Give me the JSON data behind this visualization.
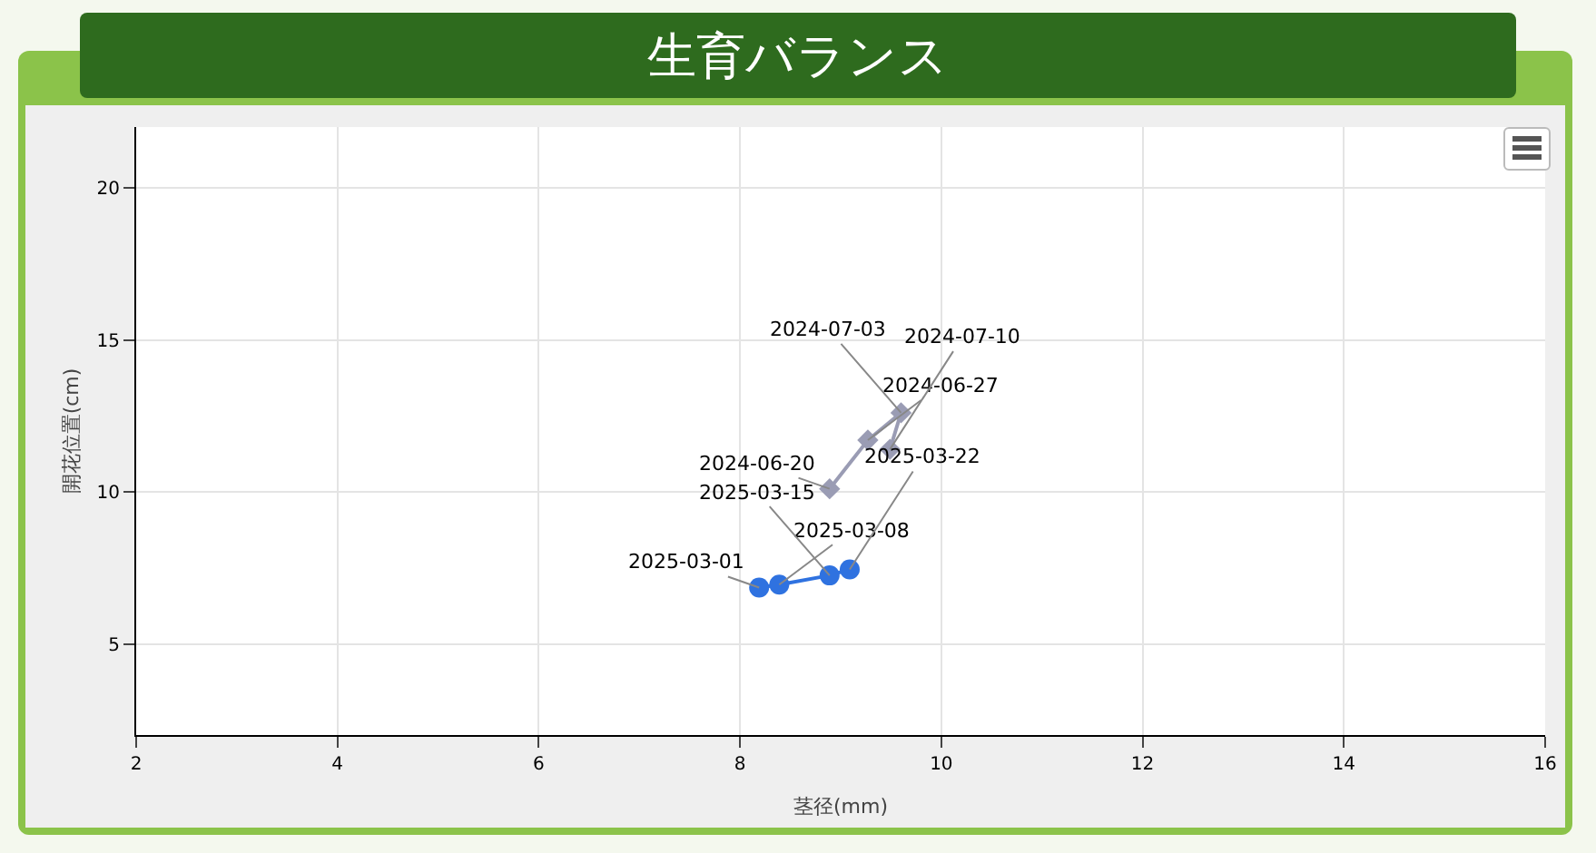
{
  "chart_data": {
    "type": "line",
    "title": "生育バランス",
    "xlabel": "茎径(mm)",
    "ylabel": "開花位置(cm)",
    "xlim": [
      2,
      16
    ],
    "xticks": [
      2,
      4,
      6,
      8,
      10,
      12,
      14,
      16
    ],
    "ylim": [
      2,
      22
    ],
    "yticks": [
      5,
      10,
      15,
      20
    ],
    "grid": true,
    "line_style": "solid",
    "series": [
      {
        "color": "#9a9cb4",
        "marker": "diamond",
        "x": [
          8.89,
          9.27,
          9.6,
          9.49
        ],
        "values": [
          10.1,
          11.7,
          12.6,
          11.4
        ]
      },
      {
        "color": "#2f72e0",
        "marker": "circle",
        "x": [
          8.19,
          8.39,
          8.89,
          9.09
        ],
        "values": [
          6.85,
          6.95,
          7.25,
          7.45
        ]
      }
    ],
    "annotations": [
      {
        "text": "2024-06-20",
        "x": 8.89,
        "y": 10.1
      },
      {
        "text": "2024-06-27",
        "x": 9.27,
        "y": 11.7
      },
      {
        "text": "2024-07-03",
        "x": 9.6,
        "y": 12.6
      },
      {
        "text": "2024-07-10",
        "x": 9.49,
        "y": 11.4
      },
      {
        "text": "2025-03-01",
        "x": 8.19,
        "y": 6.85
      },
      {
        "text": "2025-03-08",
        "x": 8.39,
        "y": 6.95
      },
      {
        "text": "2025-03-15",
        "x": 8.89,
        "y": 7.25
      },
      {
        "text": "2025-03-22",
        "x": 9.09,
        "y": 7.45
      }
    ]
  }
}
